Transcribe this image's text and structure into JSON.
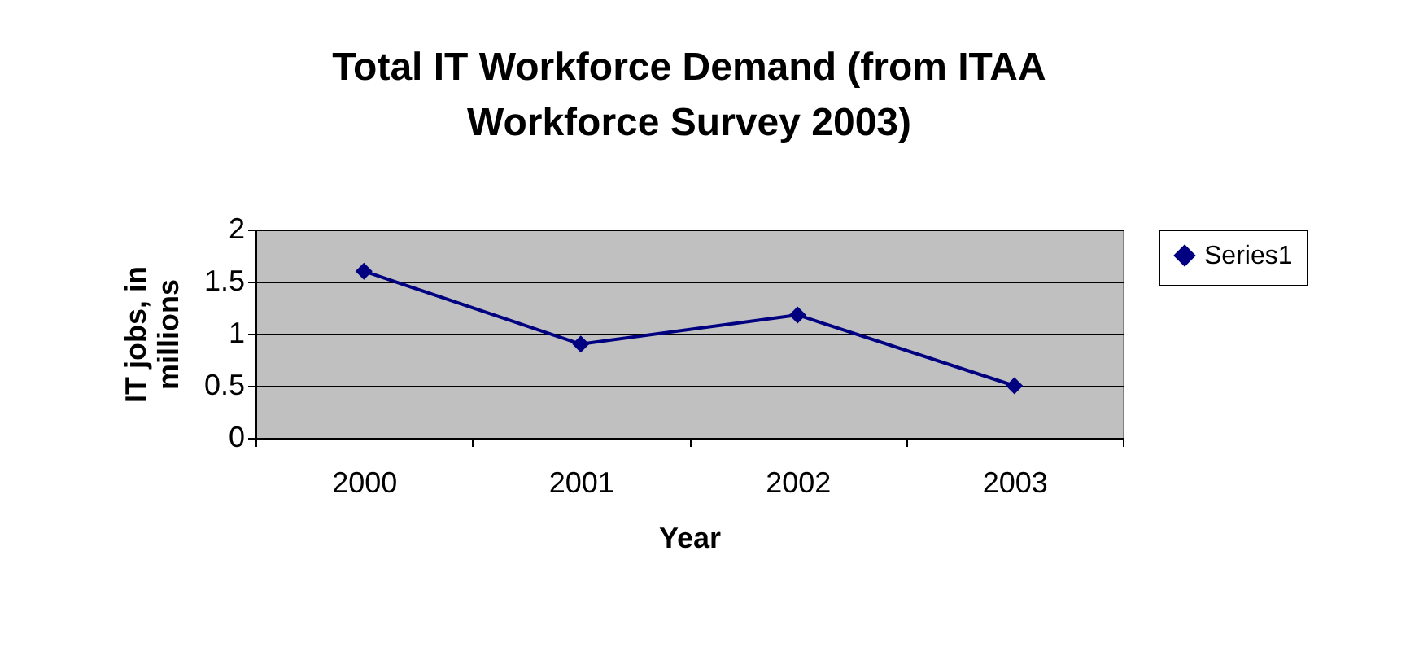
{
  "chart_data": {
    "type": "line",
    "title": "Total IT Workforce Demand (from ITAA Workforce Survey 2003)",
    "xlabel": "Year",
    "ylabel": "IT jobs, in millions",
    "categories": [
      "2000",
      "2001",
      "2002",
      "2003"
    ],
    "series": [
      {
        "name": "Series1",
        "color": "#000080",
        "values": [
          1.6,
          0.9,
          1.18,
          0.5
        ]
      }
    ],
    "ylim": [
      0,
      2
    ],
    "yticks": [
      0,
      0.5,
      1,
      1.5,
      2
    ],
    "grid": "y",
    "legend": "right",
    "marker": "diamond",
    "line_style": "solid"
  }
}
